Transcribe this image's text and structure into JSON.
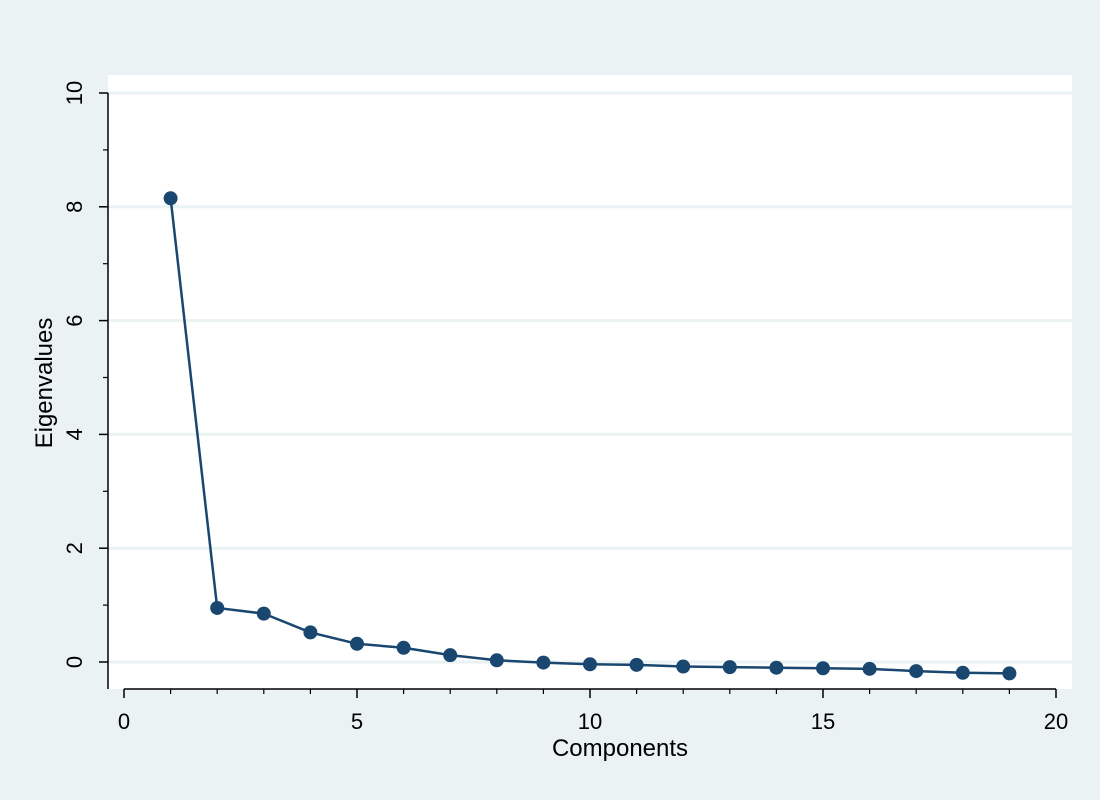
{
  "chart_data": {
    "type": "line",
    "title": "",
    "xlabel": "Components",
    "ylabel": "Eigenvalues",
    "xlim": [
      0,
      20
    ],
    "ylim": [
      0,
      10
    ],
    "xticks": [
      0,
      5,
      10,
      15,
      20
    ],
    "xtick_labels": [
      "0",
      "5",
      "10",
      "15",
      "20"
    ],
    "xticks_minor": [
      1,
      2,
      3,
      4,
      6,
      7,
      8,
      9,
      11,
      12,
      13,
      14,
      16,
      17,
      18,
      19
    ],
    "yticks": [
      0,
      2,
      4,
      6,
      8,
      10
    ],
    "ytick_labels": [
      "0",
      "2",
      "4",
      "6",
      "8",
      "10"
    ],
    "yticks_minor": [
      1,
      3,
      5,
      7,
      9
    ],
    "grid": true,
    "legend": "none",
    "series": [
      {
        "x": [
          1,
          2,
          3,
          4,
          5,
          6,
          7,
          8,
          9,
          10,
          11,
          12,
          13,
          14,
          15,
          16,
          17,
          18,
          19
        ],
        "values": [
          8.15,
          0.95,
          0.85,
          0.52,
          0.32,
          0.25,
          0.12,
          0.03,
          -0.01,
          -0.04,
          -0.05,
          -0.08,
          -0.09,
          -0.1,
          -0.11,
          -0.12,
          -0.16,
          -0.19,
          -0.2
        ],
        "color": "#1a476f"
      }
    ]
  },
  "colors": {
    "background": "#eaf2f3",
    "plot_area": "#ffffff",
    "gridline": "#eaf2f3",
    "axis": "#000000",
    "series": "#1a476f"
  }
}
